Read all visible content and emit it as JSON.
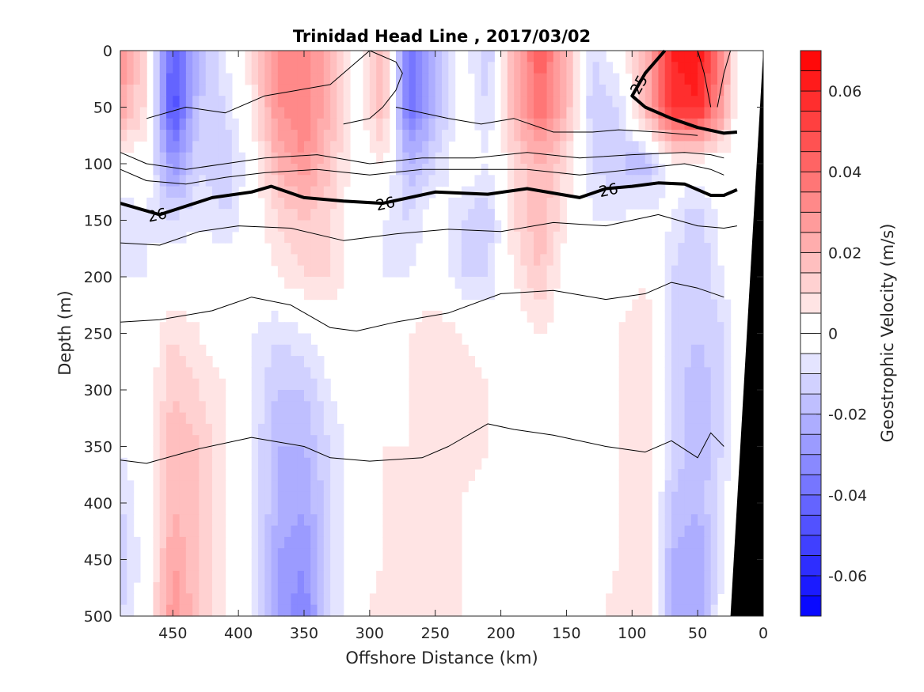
{
  "chart_data": {
    "type": "heatmap",
    "title": "Trinidad Head Line , 2017/03/02",
    "xlabel": "Offshore Distance (km)",
    "ylabel": "Depth (m)",
    "xlim": [
      490,
      0
    ],
    "ylim": [
      0,
      500
    ],
    "x_ticks": [
      "450",
      "400",
      "350",
      "300",
      "250",
      "200",
      "150",
      "100",
      "50",
      "0"
    ],
    "y_ticks": [
      "0",
      "50",
      "100",
      "150",
      "200",
      "250",
      "300",
      "350",
      "400",
      "450",
      "500"
    ],
    "colorbar": {
      "label": "Geostrophic Velocity (m/s)",
      "min": -0.07,
      "max": 0.07,
      "step": 0.005,
      "ticks": [
        "0.06",
        "0.04",
        "0.02",
        "0",
        "-0.02",
        "-0.04",
        "-0.06"
      ],
      "positive_color": "#ff0000",
      "negative_color": "#0000ff"
    },
    "velocity_field": {
      "x": [
        490,
        470,
        450,
        430,
        410,
        390,
        370,
        350,
        330,
        310,
        290,
        270,
        250,
        230,
        210,
        190,
        170,
        150,
        130,
        110,
        90,
        70,
        50,
        30,
        20
      ],
      "depths": [
        0,
        50,
        100,
        150,
        200,
        250,
        300,
        350,
        400,
        450,
        500
      ],
      "values": [
        [
          0.03,
          0.008,
          -0.045,
          -0.02,
          -0.005,
          0.01,
          0.03,
          0.035,
          0.02,
          0.0,
          0.02,
          -0.04,
          -0.02,
          0.0,
          -0.015,
          0.02,
          0.045,
          0.02,
          -0.01,
          0.0,
          0.02,
          0.06,
          0.065,
          0.03,
          0.0
        ],
        [
          0.025,
          0.008,
          -0.05,
          -0.015,
          -0.01,
          0.005,
          0.03,
          0.035,
          0.02,
          0.0,
          0.02,
          -0.04,
          -0.02,
          0.0,
          -0.01,
          0.02,
          0.04,
          0.02,
          -0.015,
          -0.01,
          0.02,
          0.055,
          0.06,
          0.025,
          0.0
        ],
        [
          0.0,
          0.0,
          -0.03,
          -0.01,
          -0.015,
          0.0,
          0.02,
          0.03,
          0.015,
          0.0,
          0.005,
          -0.02,
          -0.01,
          0.0,
          -0.005,
          0.01,
          0.02,
          0.01,
          -0.01,
          -0.015,
          -0.02,
          0.0,
          0.0,
          0.0,
          0.0
        ],
        [
          -0.01,
          -0.005,
          -0.01,
          -0.005,
          -0.01,
          0.0,
          0.01,
          0.015,
          0.01,
          0.0,
          -0.005,
          -0.01,
          0.0,
          -0.01,
          -0.015,
          0.01,
          0.02,
          0.005,
          -0.005,
          -0.005,
          0.0,
          -0.005,
          -0.015,
          0.0,
          0.0
        ],
        [
          -0.005,
          -0.005,
          0.0,
          0.0,
          0.0,
          0.0,
          0.005,
          0.01,
          0.01,
          0.0,
          -0.005,
          -0.005,
          0.0,
          -0.01,
          -0.01,
          0.005,
          0.015,
          0.0,
          -0.005,
          0.0,
          0.005,
          -0.01,
          -0.015,
          -0.005,
          0.0
        ],
        [
          -0.005,
          0.0,
          0.01,
          0.005,
          0.0,
          -0.005,
          -0.01,
          -0.005,
          0.0,
          0.0,
          0.0,
          0.005,
          0.01,
          0.005,
          0.0,
          0.0,
          0.005,
          0.0,
          0.0,
          0.005,
          0.01,
          -0.01,
          -0.015,
          -0.01,
          0.0
        ],
        [
          -0.005,
          0.0,
          0.015,
          0.01,
          0.005,
          -0.005,
          -0.015,
          -0.015,
          -0.005,
          0.0,
          0.0,
          0.005,
          0.01,
          0.01,
          0.005,
          0.0,
          0.0,
          0.0,
          0.0,
          0.005,
          0.01,
          -0.01,
          -0.02,
          -0.01,
          0.0
        ],
        [
          -0.005,
          0.0,
          0.02,
          0.015,
          0.005,
          -0.005,
          -0.02,
          -0.02,
          -0.01,
          0.0,
          0.005,
          0.005,
          0.005,
          0.01,
          0.005,
          0.0,
          0.0,
          0.005,
          0.0,
          0.005,
          0.01,
          -0.01,
          -0.02,
          -0.01,
          0.0
        ],
        [
          -0.01,
          0.0,
          0.02,
          0.015,
          0.005,
          -0.005,
          -0.02,
          -0.025,
          -0.01,
          0.0,
          0.005,
          0.005,
          0.005,
          0.005,
          0.0,
          0.0,
          0.0,
          0.005,
          0.0,
          0.005,
          0.01,
          -0.015,
          -0.02,
          -0.005,
          0.0
        ],
        [
          -0.015,
          0.0,
          0.025,
          0.015,
          0.005,
          -0.005,
          -0.025,
          -0.03,
          -0.01,
          0.0,
          0.005,
          0.005,
          0.005,
          0.005,
          0.0,
          -0.005,
          0.0,
          0.005,
          0.0,
          0.005,
          0.01,
          -0.02,
          -0.025,
          -0.005,
          0.0
        ],
        [
          -0.01,
          0.0,
          0.03,
          0.015,
          0.005,
          -0.005,
          -0.025,
          -0.035,
          -0.01,
          0.0,
          0.01,
          0.005,
          0.005,
          0.005,
          0.0,
          -0.005,
          0.0,
          0.005,
          0.0,
          0.01,
          0.01,
          -0.02,
          -0.025,
          0.0,
          0.0
        ]
      ]
    },
    "isopycnals": [
      {
        "points": [
          [
            300,
            0
          ],
          [
            280,
            10
          ],
          [
            275,
            20
          ],
          [
            280,
            35
          ],
          [
            290,
            50
          ],
          [
            300,
            60
          ],
          [
            320,
            65
          ]
        ]
      },
      {
        "points": [
          [
            470,
            60
          ],
          [
            440,
            50
          ],
          [
            410,
            55
          ],
          [
            380,
            40
          ],
          [
            355,
            35
          ],
          [
            330,
            30
          ],
          [
            300,
            0
          ]
        ]
      },
      {
        "points": [
          [
            280,
            50
          ],
          [
            240,
            60
          ],
          [
            215,
            65
          ],
          [
            190,
            60
          ],
          [
            160,
            72
          ],
          [
            130,
            72
          ],
          [
            110,
            70
          ],
          [
            80,
            72
          ],
          [
            50,
            75
          ]
        ]
      },
      {
        "points": [
          [
            490,
            90
          ],
          [
            470,
            100
          ],
          [
            440,
            105
          ],
          [
            410,
            100
          ],
          [
            380,
            95
          ],
          [
            340,
            92
          ],
          [
            300,
            100
          ],
          [
            260,
            95
          ],
          [
            220,
            95
          ],
          [
            180,
            90
          ],
          [
            140,
            95
          ],
          [
            100,
            92
          ],
          [
            60,
            90
          ],
          [
            40,
            92
          ],
          [
            30,
            95
          ]
        ]
      },
      {
        "points": [
          [
            490,
            105
          ],
          [
            470,
            115
          ],
          [
            440,
            118
          ],
          [
            410,
            112
          ],
          [
            380,
            108
          ],
          [
            340,
            105
          ],
          [
            300,
            110
          ],
          [
            260,
            105
          ],
          [
            220,
            105
          ],
          [
            180,
            105
          ],
          [
            140,
            110
          ],
          [
            100,
            105
          ],
          [
            60,
            100
          ],
          [
            40,
            105
          ],
          [
            30,
            110
          ]
        ]
      },
      {
        "points": [
          [
            490,
            135
          ],
          [
            460,
            145
          ],
          [
            420,
            130
          ],
          [
            390,
            125
          ],
          [
            375,
            120
          ],
          [
            350,
            130
          ],
          [
            320,
            133
          ],
          [
            290,
            135
          ],
          [
            250,
            125
          ],
          [
            210,
            127
          ],
          [
            180,
            122
          ],
          [
            140,
            130
          ],
          [
            120,
            122
          ],
          [
            100,
            120
          ],
          [
            80,
            117
          ],
          [
            60,
            118
          ],
          [
            40,
            128
          ],
          [
            30,
            128
          ],
          [
            20,
            123
          ]
        ],
        "bold": true,
        "label": "26"
      },
      {
        "points": [
          [
            490,
            170
          ],
          [
            460,
            172
          ],
          [
            430,
            160
          ],
          [
            400,
            155
          ],
          [
            360,
            157
          ],
          [
            320,
            168
          ],
          [
            280,
            162
          ],
          [
            240,
            158
          ],
          [
            200,
            160
          ],
          [
            160,
            152
          ],
          [
            120,
            155
          ],
          [
            80,
            145
          ],
          [
            50,
            155
          ],
          [
            30,
            157
          ],
          [
            20,
            155
          ]
        ]
      },
      {
        "points": [
          [
            490,
            240
          ],
          [
            460,
            238
          ],
          [
            420,
            230
          ],
          [
            390,
            218
          ],
          [
            360,
            225
          ],
          [
            330,
            245
          ],
          [
            310,
            248
          ],
          [
            280,
            240
          ],
          [
            240,
            232
          ],
          [
            200,
            215
          ],
          [
            160,
            212
          ],
          [
            120,
            220
          ],
          [
            90,
            215
          ],
          [
            70,
            205
          ],
          [
            50,
            210
          ],
          [
            30,
            218
          ]
        ]
      },
      {
        "points": [
          [
            490,
            362
          ],
          [
            470,
            365
          ],
          [
            430,
            352
          ],
          [
            390,
            342
          ],
          [
            350,
            350
          ],
          [
            330,
            360
          ],
          [
            300,
            363
          ],
          [
            260,
            360
          ],
          [
            240,
            350
          ],
          [
            210,
            330
          ],
          [
            190,
            335
          ],
          [
            160,
            340
          ],
          [
            120,
            350
          ],
          [
            90,
            355
          ],
          [
            70,
            345
          ],
          [
            50,
            360
          ],
          [
            40,
            338
          ],
          [
            30,
            350
          ]
        ]
      },
      {
        "points": [
          [
            75,
            0
          ],
          [
            90,
            20
          ],
          [
            100,
            40
          ],
          [
            90,
            50
          ],
          [
            70,
            60
          ],
          [
            50,
            68
          ],
          [
            30,
            73
          ],
          [
            20,
            72
          ]
        ],
        "bold": true,
        "label": "25"
      },
      {
        "points": [
          [
            25,
            0
          ],
          [
            30,
            20
          ],
          [
            35,
            50
          ]
        ]
      },
      {
        "points": [
          [
            50,
            0
          ],
          [
            45,
            20
          ],
          [
            40,
            50
          ]
        ]
      }
    ],
    "bathymetry": {
      "points": [
        [
          0,
          0
        ],
        [
          25,
          500
        ],
        [
          0,
          500
        ]
      ],
      "color": "#000000"
    },
    "grid": false
  }
}
